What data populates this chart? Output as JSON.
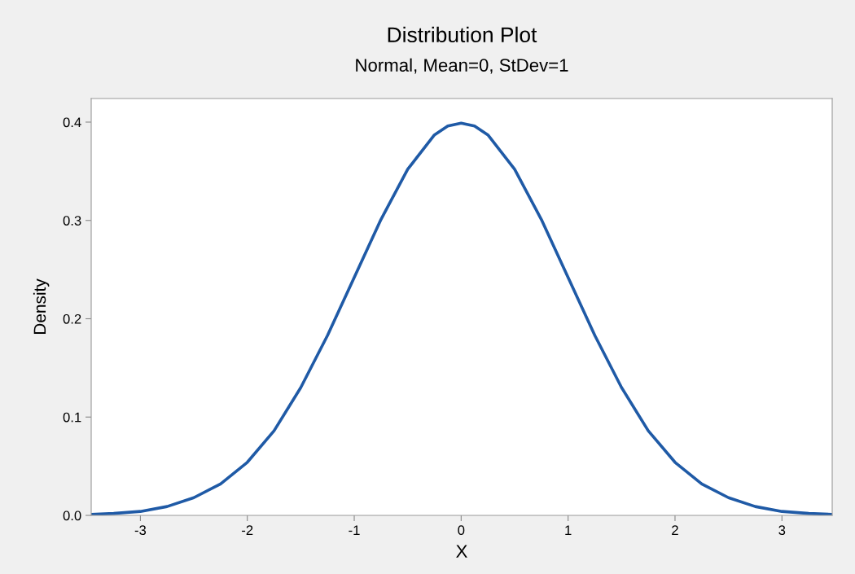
{
  "chart_data": {
    "type": "line",
    "title": "Distribution Plot",
    "subtitle": "Normal, Mean=0, StDev=1",
    "xlabel": "X",
    "ylabel": "Density",
    "x": [
      -3.46,
      -3.25,
      -3.0,
      -2.75,
      -2.5,
      -2.25,
      -2.0,
      -1.75,
      -1.5,
      -1.25,
      -1.0,
      -0.75,
      -0.5,
      -0.25,
      -0.125,
      0.0,
      0.125,
      0.25,
      0.5,
      0.75,
      1.0,
      1.25,
      1.5,
      1.75,
      2.0,
      2.25,
      2.5,
      2.75,
      3.0,
      3.25,
      3.47
    ],
    "series": [
      {
        "color": "#1f5aa6",
        "values": [
          0.001,
          0.002,
          0.004,
          0.009,
          0.018,
          0.032,
          0.054,
          0.086,
          0.13,
          0.183,
          0.242,
          0.301,
          0.352,
          0.387,
          0.396,
          0.399,
          0.396,
          0.387,
          0.352,
          0.301,
          0.242,
          0.183,
          0.13,
          0.086,
          0.054,
          0.032,
          0.018,
          0.009,
          0.004,
          0.002,
          0.001
        ]
      }
    ],
    "xlim": [
      -3.46,
      3.47
    ],
    "ylim": [
      0,
      0.424
    ],
    "xticks": [
      -3,
      -2,
      -1,
      0,
      1,
      2,
      3
    ],
    "yticks": [
      {
        "value": 0,
        "label": "0.0"
      },
      0.1,
      0.2,
      0.3,
      0.4
    ],
    "grid": false,
    "legend": false,
    "marker": "none",
    "line_style": "solid"
  }
}
